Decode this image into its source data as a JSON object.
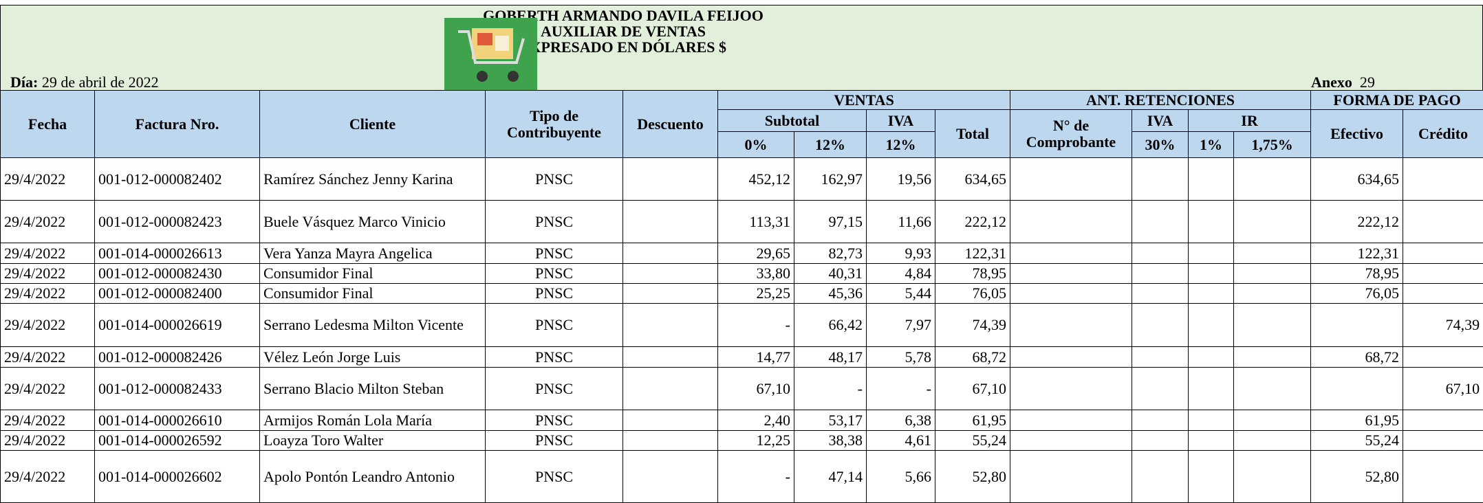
{
  "header": {
    "title_lines": [
      "GOBERTH ARMANDO DAVILA FEIJOO",
      "AUXILIAR DE VENTAS",
      "EXPRESADO EN DÓLARES $"
    ],
    "dia_label": "Día:",
    "dia_value": "29 de abril de 2022",
    "anexo_label": "Anexo",
    "anexo_value": "29"
  },
  "table": {
    "headers": {
      "fecha": "Fecha",
      "factura": "Factura Nro.",
      "cliente": "Cliente",
      "tipo": "Tipo de Contribuyente",
      "descuento": "Descuento",
      "ventas": "VENTAS",
      "subtotal": "Subtotal",
      "iva": "IVA",
      "total": "Total",
      "ant_retenciones": "ANT. RETENCIONES",
      "comprobante": "N° de Comprobante",
      "iva_ret": "IVA",
      "ir": "IR",
      "forma_pago": "FORMA DE PAGO",
      "efectivo": "Efectivo",
      "credito": "Crédito",
      "sub_0": "0%",
      "sub_12": "12%",
      "iva_12": "12%",
      "iva_30": "30%",
      "ir_1": "1%",
      "ir_175": "1,75%"
    },
    "rows": [
      {
        "fecha": "29/4/2022",
        "factura": "001-012-000082402",
        "cliente": "Ramírez Sánchez Jenny Karina",
        "tipo": "PNSC",
        "sub0": "452,12",
        "sub12": "162,97",
        "iva12": "19,56",
        "total": "634,65",
        "efectivo": "634,65"
      },
      {
        "fecha": "29/4/2022",
        "factura": "001-012-000082423",
        "cliente": "Buele Vásquez Marco Vinicio",
        "tipo": "PNSC",
        "sub0": "113,31",
        "sub12": "97,15",
        "iva12": "11,66",
        "total": "222,12",
        "efectivo": "222,12"
      },
      {
        "fecha": "29/4/2022",
        "factura": "001-014-000026613",
        "cliente": "Vera Yanza Mayra Angelica",
        "tipo": "PNSC",
        "sub0": "29,65",
        "sub12": "82,73",
        "iva12": "9,93",
        "total": "122,31",
        "efectivo": "122,31"
      },
      {
        "fecha": "29/4/2022",
        "factura": "001-012-000082430",
        "cliente": "Consumidor Final",
        "tipo": "PNSC",
        "sub0": "33,80",
        "sub12": "40,31",
        "iva12": "4,84",
        "total": "78,95",
        "efectivo": "78,95"
      },
      {
        "fecha": "29/4/2022",
        "factura": "001-012-000082400",
        "cliente": "Consumidor Final",
        "tipo": "PNSC",
        "sub0": "25,25",
        "sub12": "45,36",
        "iva12": "5,44",
        "total": "76,05",
        "efectivo": "76,05"
      },
      {
        "fecha": "29/4/2022",
        "factura": "001-014-000026619",
        "cliente": "Serrano Ledesma Milton Vicente",
        "tipo": "PNSC",
        "sub0": "-",
        "sub12": "66,42",
        "iva12": "7,97",
        "total": "74,39",
        "credito": "74,39"
      },
      {
        "fecha": "29/4/2022",
        "factura": "001-012-000082426",
        "cliente": "Vélez León Jorge Luis",
        "tipo": "PNSC",
        "sub0": "14,77",
        "sub12": "48,17",
        "iva12": "5,78",
        "total": "68,72",
        "efectivo": "68,72"
      },
      {
        "fecha": "29/4/2022",
        "factura": "001-012-000082433",
        "cliente": "Serrano Blacio Milton Steban",
        "tipo": "PNSC",
        "sub0": "67,10",
        "sub12": "-",
        "iva12": "-",
        "total": "67,10",
        "credito": "67,10"
      },
      {
        "fecha": "29/4/2022",
        "factura": "001-014-000026610",
        "cliente": "Armijos Román Lola María",
        "tipo": "PNSC",
        "sub0": "2,40",
        "sub12": "53,17",
        "iva12": "6,38",
        "total": "61,95",
        "efectivo": "61,95"
      },
      {
        "fecha": "29/4/2022",
        "factura": "001-014-000026592",
        "cliente": "Loayza Toro Walter",
        "tipo": "PNSC",
        "sub0": "12,25",
        "sub12": "38,38",
        "iva12": "4,61",
        "total": "55,24",
        "efectivo": "55,24"
      },
      {
        "fecha": "29/4/2022",
        "factura": "001-014-000026602",
        "cliente": "Apolo Pontón Leandro Antonio",
        "tipo": "PNSC",
        "sub0": "-",
        "sub12": "47,14",
        "iva12": "5,66",
        "total": "52,80",
        "efectivo": "52,80"
      }
    ]
  }
}
